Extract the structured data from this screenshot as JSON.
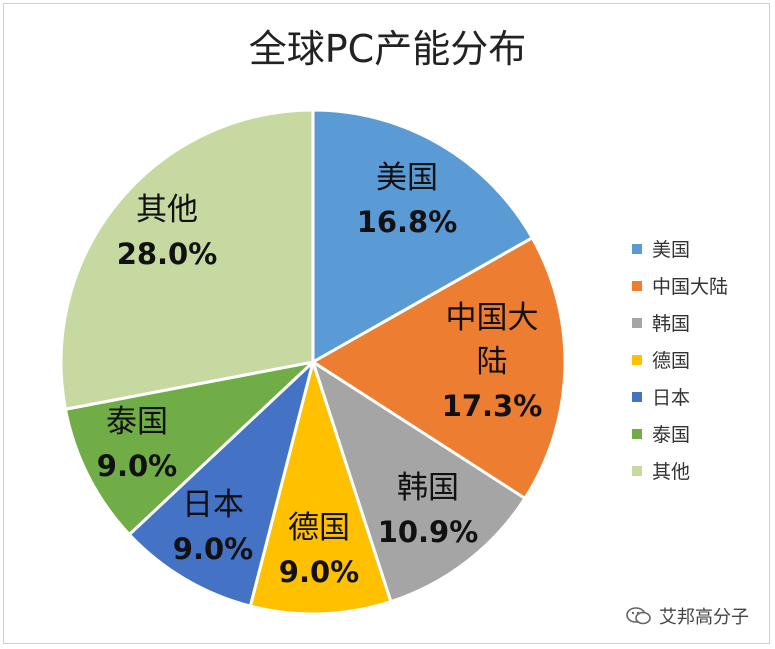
{
  "chart_data": {
    "type": "pie",
    "title": "全球PC产能分布",
    "slices": [
      {
        "label": "美国",
        "label_lines": [
          "美国"
        ],
        "value": 16.8,
        "value_text": "16.8%",
        "color": "#5B9BD5"
      },
      {
        "label": "中国大陆",
        "label_lines": [
          "中国大",
          "陆"
        ],
        "value": 17.3,
        "value_text": "17.3%",
        "color": "#ED7D31"
      },
      {
        "label": "韩国",
        "label_lines": [
          "韩国"
        ],
        "value": 10.9,
        "value_text": "10.9%",
        "color": "#A5A5A5"
      },
      {
        "label": "德国",
        "label_lines": [
          "德国"
        ],
        "value": 9.0,
        "value_text": "9.0%",
        "color": "#FFC000"
      },
      {
        "label": "日本",
        "label_lines": [
          "日本"
        ],
        "value": 9.0,
        "value_text": "9.0%",
        "color": "#4472C4"
      },
      {
        "label": "泰国",
        "label_lines": [
          "泰国"
        ],
        "value": 9.0,
        "value_text": "9.0%",
        "color": "#70AD47"
      },
      {
        "label": "其他",
        "label_lines": [
          "其他"
        ],
        "value": 28.0,
        "value_text": "28.0%",
        "color": "#C5D9A0"
      }
    ],
    "legend_position": "right"
  },
  "watermark": {
    "text": "艾邦高分子",
    "icon": "wechat-icon"
  }
}
